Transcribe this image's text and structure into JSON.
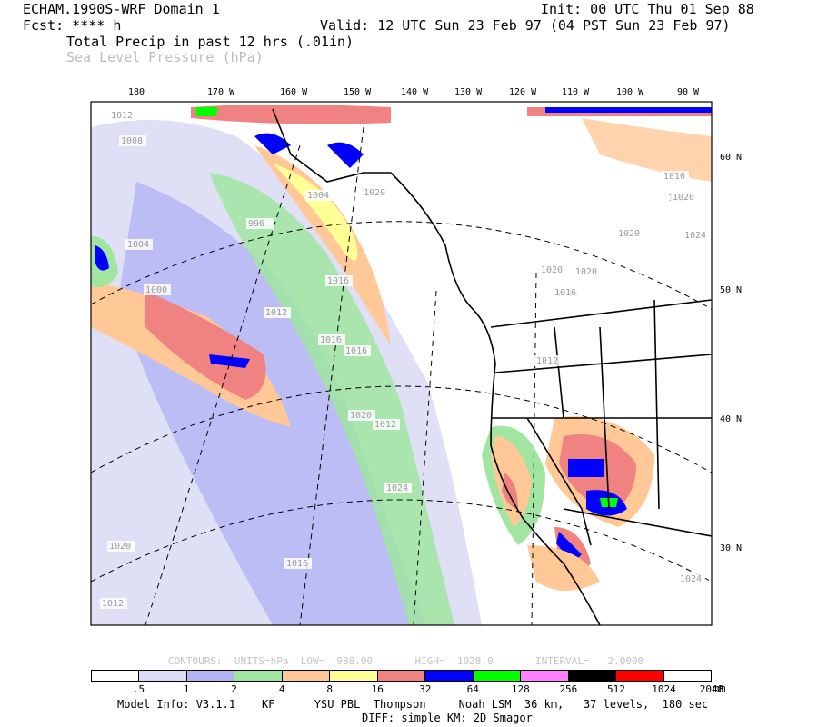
{
  "header": {
    "model": "ECHAM.1990S-WRF Domain 1",
    "init": "Init: 00 UTC Thu 01 Sep 88",
    "fcst": "Fcst: **** h",
    "valid": "Valid: 12 UTC Sun 23 Feb 97 (04 PST Sun 23 Feb 97)",
    "field1": "Total Precip in past 12 hrs (.01in)",
    "field2": "Sea Level Pressure (hPa)"
  },
  "map": {
    "longitude_labels": [
      "180",
      "170 W",
      "160 W",
      "150 W",
      "140 W",
      "130 W",
      "120 W",
      "110 W",
      "100 W",
      "90 W"
    ],
    "latitude_labels": [
      "60 N",
      "50 N",
      "40 N",
      "30 N"
    ],
    "pressure_labels": [
      "1012",
      "1008",
      "1004",
      "1000",
      "996",
      "1004",
      "1016",
      "1012",
      "1016",
      "1016",
      "1020",
      "1024",
      "1020",
      "1016",
      "1012",
      "1016",
      "1020",
      "1024",
      "1016",
      "1024",
      "1020",
      "1024",
      "1020",
      "1016",
      "1012",
      "1020",
      "1012",
      "1020"
    ]
  },
  "contours_line": "CONTOURS:  UNITS=hPa  LOW=  988.00       HIGH=  1028.0       INTERVAL=   2.0000",
  "colorbar": {
    "colors": [
      "#ffffff",
      "#dcdcf5",
      "#b4b4f5",
      "#a0e6a0",
      "#ffc896",
      "#ffff96",
      "#f08282",
      "#0000ff",
      "#00ff00",
      "#ff80ff",
      "#000000",
      "#ff0000",
      "#ffffff"
    ],
    "labels": [
      ".5",
      "1",
      "2",
      "4",
      "8",
      "16",
      "32",
      "64",
      "128",
      "256",
      "512",
      "1024",
      "2048"
    ],
    "units": "mm"
  },
  "footer": {
    "line1": "Model Info: V3.1.1    KF      YSU PBL  Thompson     Noah LSM  36 km,   37 levels,  180 sec",
    "line2": "DIFF: simple KM: 2D Smagor"
  }
}
